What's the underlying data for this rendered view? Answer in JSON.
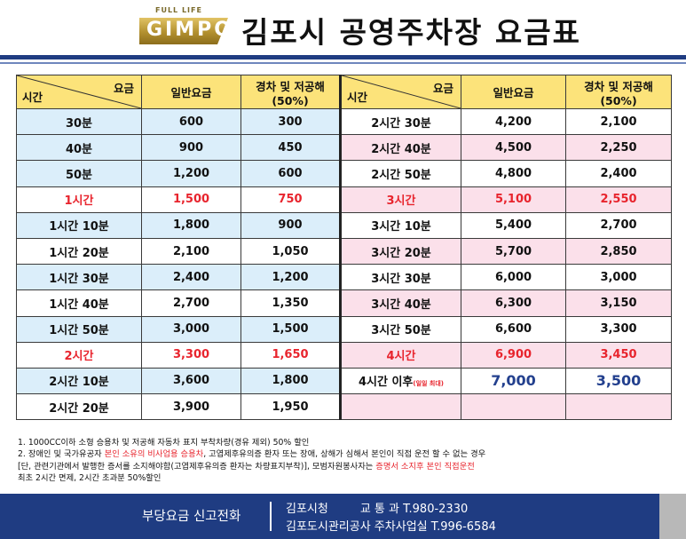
{
  "header": {
    "logo_small": "FULL LIFE",
    "logo_word": "GIMPO",
    "title": "김포시 공영주차장 요금표"
  },
  "table": {
    "corner_top": "요금",
    "corner_bottom": "시간",
    "col_regular": "일반요금",
    "col_discount_line1": "경차 및 저공해",
    "col_discount_line2": "(50%)",
    "left_rows": [
      {
        "time": "30분",
        "regular": "600",
        "discount": "300",
        "style": "blue"
      },
      {
        "time": "40분",
        "regular": "900",
        "discount": "450",
        "style": "blue"
      },
      {
        "time": "50분",
        "regular": "1,200",
        "discount": "600",
        "style": "blue"
      },
      {
        "time": "1시간",
        "regular": "1,500",
        "discount": "750",
        "style": "white-red"
      },
      {
        "time": "1시간 10분",
        "regular": "1,800",
        "discount": "900",
        "style": "blue"
      },
      {
        "time": "1시간 20분",
        "regular": "2,100",
        "discount": "1,050",
        "style": "white"
      },
      {
        "time": "1시간 30분",
        "regular": "2,400",
        "discount": "1,200",
        "style": "blue"
      },
      {
        "time": "1시간 40분",
        "regular": "2,700",
        "discount": "1,350",
        "style": "white"
      },
      {
        "time": "1시간 50분",
        "regular": "3,000",
        "discount": "1,500",
        "style": "blue"
      },
      {
        "time": "2시간",
        "regular": "3,300",
        "discount": "1,650",
        "style": "white-red"
      },
      {
        "time": "2시간 10분",
        "regular": "3,600",
        "discount": "1,800",
        "style": "blue"
      },
      {
        "time": "2시간 20분",
        "regular": "3,900",
        "discount": "1,950",
        "style": "white"
      }
    ],
    "right_rows": [
      {
        "time": "2시간 30분",
        "regular": "4,200",
        "discount": "2,100",
        "style": "white"
      },
      {
        "time": "2시간 40분",
        "regular": "4,500",
        "discount": "2,250",
        "style": "pink"
      },
      {
        "time": "2시간 50분",
        "regular": "4,800",
        "discount": "2,400",
        "style": "white"
      },
      {
        "time": "3시간",
        "regular": "5,100",
        "discount": "2,550",
        "style": "pink-red"
      },
      {
        "time": "3시간 10분",
        "regular": "5,400",
        "discount": "2,700",
        "style": "white"
      },
      {
        "time": "3시간 20분",
        "regular": "5,700",
        "discount": "2,850",
        "style": "pink"
      },
      {
        "time": "3시간 30분",
        "regular": "6,000",
        "discount": "3,000",
        "style": "white"
      },
      {
        "time": "3시간 40분",
        "regular": "6,300",
        "discount": "3,150",
        "style": "pink"
      },
      {
        "time": "3시간 50분",
        "regular": "6,600",
        "discount": "3,300",
        "style": "white"
      },
      {
        "time": "4시간",
        "regular": "6,900",
        "discount": "3,450",
        "style": "pink-red"
      },
      {
        "time": "4시간 이후",
        "time_note": "(일일 최대)",
        "regular": "7,000",
        "discount": "3,500",
        "style": "white-big"
      },
      {
        "time": "",
        "regular": "",
        "discount": "",
        "style": "pink"
      }
    ]
  },
  "notes": {
    "n1": "1. 1000CC이하 소형 승용차 및 저공해 자동차 표지 부착차량(경유 제외) 50% 할인",
    "n2_a": "2. 장애인 및 국가유공자 ",
    "n2_hl": "본인 소유의 비사업용 승용차",
    "n2_b": ", 고엽제후유의증 환자 또는 장애, 상해가 심해서 본인이 직접 운전 할 수 없는 경우",
    "n3_a": "   [단, 관련기관에서 발행한 증서를 소지해야함(고엽제후유의증 환자는 차량표지부착)], 모범자원봉사자는 ",
    "n3_hl": "증명서 소지후 본인 직접운전",
    "n4": "   최초 2시간 면제, 2시간 초과분 50%할인"
  },
  "footer": {
    "left": "부당요금 신고전화",
    "r1_a": "김포시청",
    "r1_b": "교 통 과 T.980-2330",
    "r2": "김포도시관리공사 주차사업실 T.996-6584"
  },
  "colors": {
    "navy": "#1f3c82",
    "header_yellow": "#fce37a",
    "row_blue": "#dbeefa",
    "row_pink": "#fbe0ea",
    "highlight_red": "#e8242d"
  }
}
